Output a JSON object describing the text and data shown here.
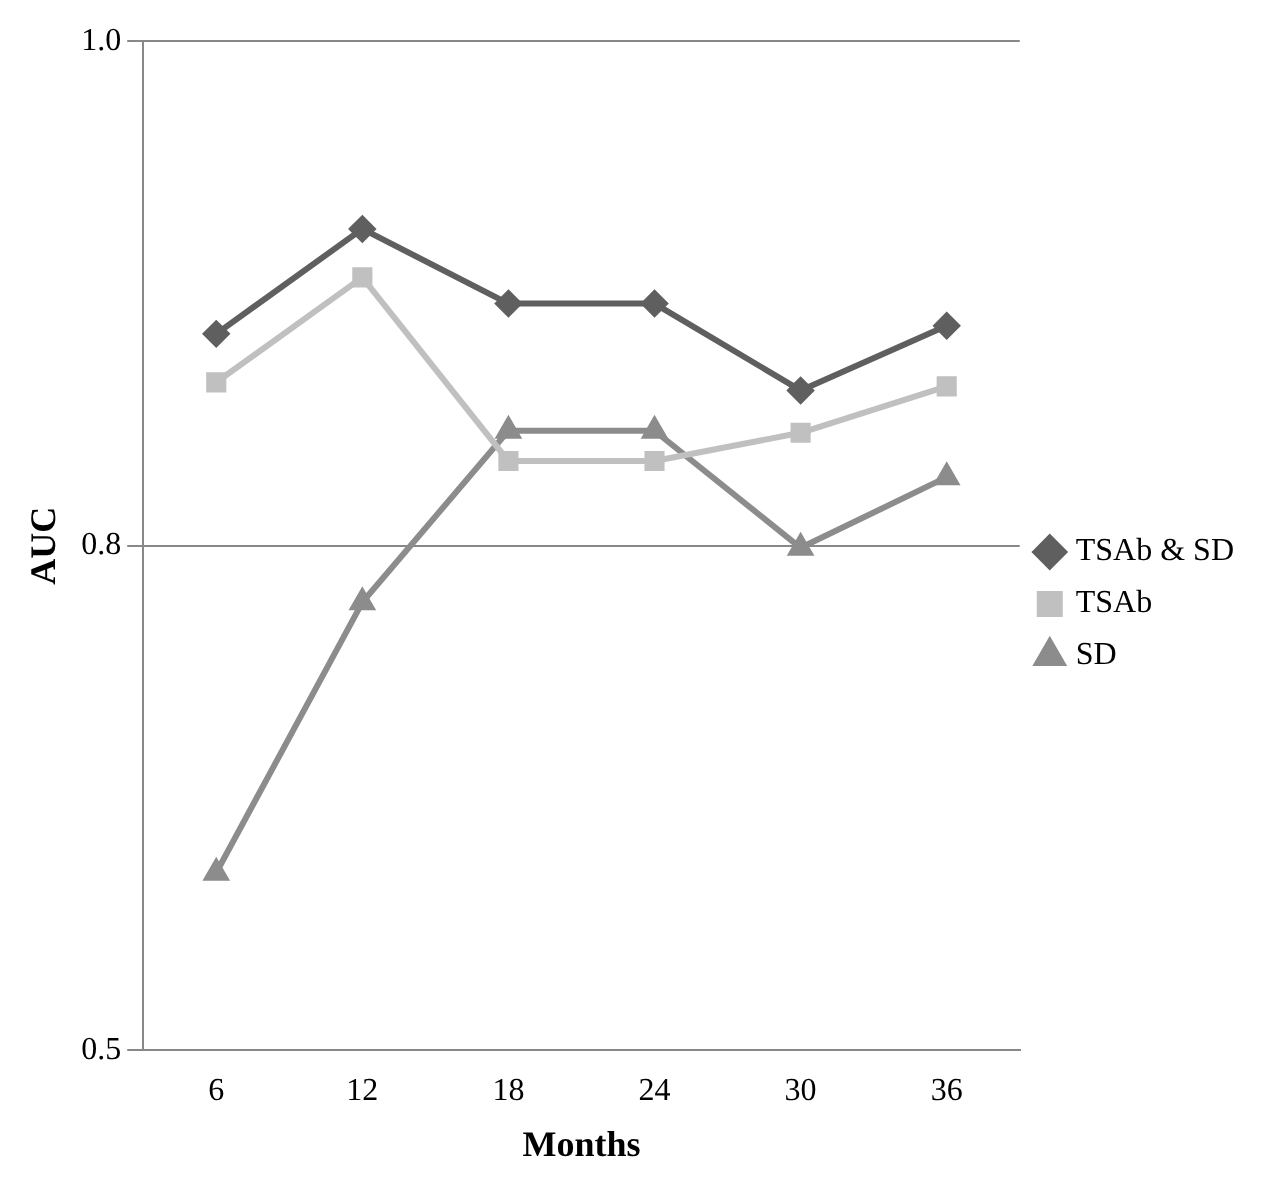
{
  "chart_data": {
    "type": "line",
    "xlabel": "Months",
    "ylabel": "AUC",
    "categories": [
      "6",
      "12",
      "18",
      "24",
      "30",
      "36"
    ],
    "series": [
      {
        "name": "TSAb & SD",
        "color": "#5f5f5f",
        "marker": "diamond",
        "values": [
          0.855,
          0.907,
          0.87,
          0.87,
          0.827,
          0.859
        ]
      },
      {
        "name": "TSAb",
        "color": "#c0c0c0",
        "marker": "square",
        "values": [
          0.831,
          0.883,
          0.792,
          0.792,
          0.806,
          0.829
        ]
      },
      {
        "name": "SD",
        "color": "#8c8c8c",
        "marker": "triangle",
        "values": [
          0.588,
          0.722,
          0.807,
          0.807,
          0.749,
          0.784
        ]
      }
    ],
    "ylim": [
      0.5,
      1.0
    ],
    "yticks": [
      {
        "value": 0.5,
        "label": "0.5"
      },
      {
        "value": 0.75,
        "label": "0.8"
      },
      {
        "value": 1.0,
        "label": "1.0"
      }
    ],
    "grid": "y",
    "legend": "right",
    "line_style": "solid"
  }
}
